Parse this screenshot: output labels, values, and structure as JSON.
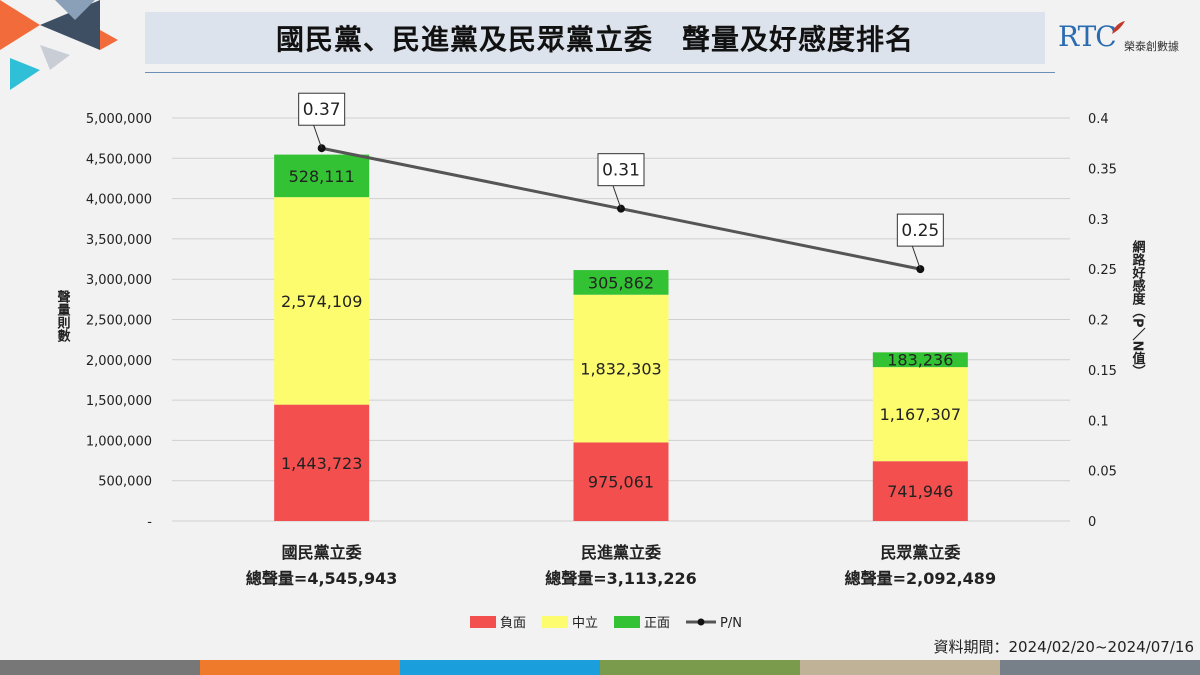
{
  "header": {
    "title": "國民黨、民進黨及民眾黨立委　聲量及好感度排名",
    "logo_text": "RTC",
    "logo_sub": "榮泰創數據"
  },
  "footer": {
    "period": "資料期間：2024/02/20~2024/07/16"
  },
  "colors": {
    "negative": "#f34f4f",
    "neutral": "#fcfc6e",
    "positive": "#33c233",
    "line": "#555555",
    "title_bg": "#dde3ec",
    "bottom_bar": [
      "#777777",
      "#f07a2b",
      "#1a9fdc",
      "#7a9a4c",
      "#c0b296",
      "#778088"
    ]
  },
  "chart_data": {
    "type": "bar",
    "stacked": true,
    "categories": [
      "國民黨立委",
      "民進黨立委",
      "民眾黨立委"
    ],
    "category_totals": [
      "總聲量=4,545,943",
      "總聲量=3,113,226",
      "總聲量=2,092,489"
    ],
    "series": [
      {
        "name": "負面",
        "values": [
          1443723,
          975061,
          741946
        ],
        "labels": [
          "1,443,723",
          "975,061",
          "741,946"
        ]
      },
      {
        "name": "中立",
        "values": [
          2574109,
          1832303,
          1167307
        ],
        "labels": [
          "2,574,109",
          "1,832,303",
          "1,167,307"
        ]
      },
      {
        "name": "正面",
        "values": [
          528111,
          305862,
          183236
        ],
        "labels": [
          "528,111",
          "305,862",
          "183,236"
        ]
      }
    ],
    "line_series": {
      "name": "P/N",
      "values": [
        0.37,
        0.31,
        0.25
      ],
      "labels": [
        "0.37",
        "0.31",
        "0.25"
      ]
    },
    "ylabel": "聲量則數",
    "y2label": "網路好感度（P／N值）",
    "ylim": [
      0,
      5000000
    ],
    "y2lim": [
      0,
      0.4
    ],
    "yticks": [
      "-",
      "500,000",
      "1,000,000",
      "1,500,000",
      "2,000,000",
      "2,500,000",
      "3,000,000",
      "3,500,000",
      "4,000,000",
      "4,500,000",
      "5,000,000"
    ],
    "y2ticks": [
      "0",
      "0.05",
      "0.1",
      "0.15",
      "0.2",
      "0.25",
      "0.3",
      "0.35",
      "0.4"
    ],
    "grid": true,
    "legend": "bottom"
  }
}
